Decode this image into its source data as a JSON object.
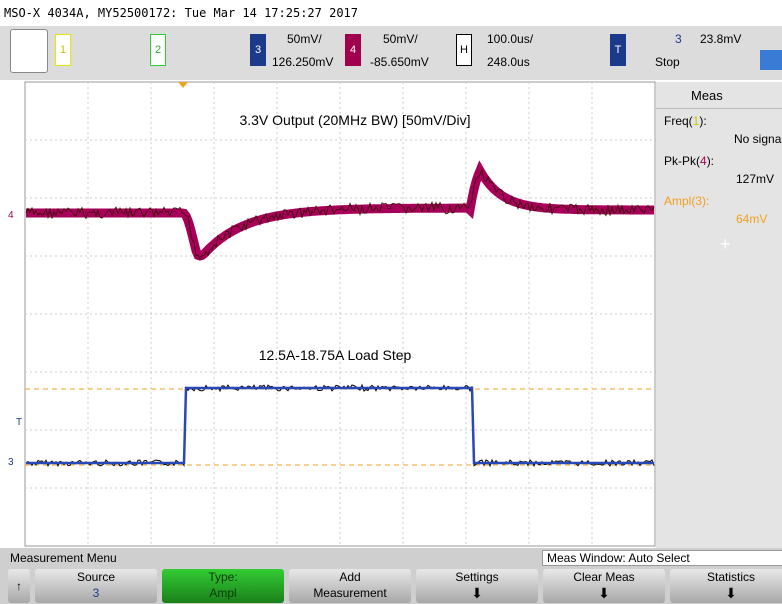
{
  "header": {
    "title": "MSO-X 4034A, MY52500172: Tue Mar 14 17:25:27 2017"
  },
  "toolbar": {
    "ch1": "1",
    "ch2": "2",
    "ch3": {
      "label": "3",
      "scale": "50mV/",
      "offset": "126.250mV"
    },
    "ch4": {
      "label": "4",
      "scale": "50mV/",
      "offset": "-85.650mV"
    },
    "horizontal": {
      "label": "H",
      "scale": "100.0us/",
      "delay": "248.0us"
    },
    "trigger": {
      "label": "T",
      "source": "3",
      "level": "23.8mV",
      "state": "Stop"
    }
  },
  "plot": {
    "annotations": [
      "3.3V Output (20MHz BW) [50mV/Div]",
      "12.5A-18.75A Load Step"
    ],
    "markers": {
      "ch4": "4",
      "trigger": "T",
      "ch3": "3"
    }
  },
  "side_panel": {
    "title": "Meas",
    "measurements": [
      {
        "name": "Freq(",
        "channel": "1",
        "suffix": "):",
        "value": "No signal"
      },
      {
        "name": "Pk-Pk(",
        "channel": "4",
        "suffix": "):",
        "value": "127mV"
      },
      {
        "name": "Ampl(",
        "channel": "3",
        "suffix": "):",
        "value": "64mV"
      }
    ]
  },
  "menu": {
    "title": "Measurement Menu",
    "window": "Meas Window: Auto Select",
    "softkeys": [
      {
        "label": "Source",
        "value": "3"
      },
      {
        "label": "Type:",
        "value": "Ampl"
      },
      {
        "label": "Add",
        "value": "Measurement"
      },
      {
        "label": "Settings"
      },
      {
        "label": "Clear Meas"
      },
      {
        "label": "Statistics"
      }
    ]
  }
}
